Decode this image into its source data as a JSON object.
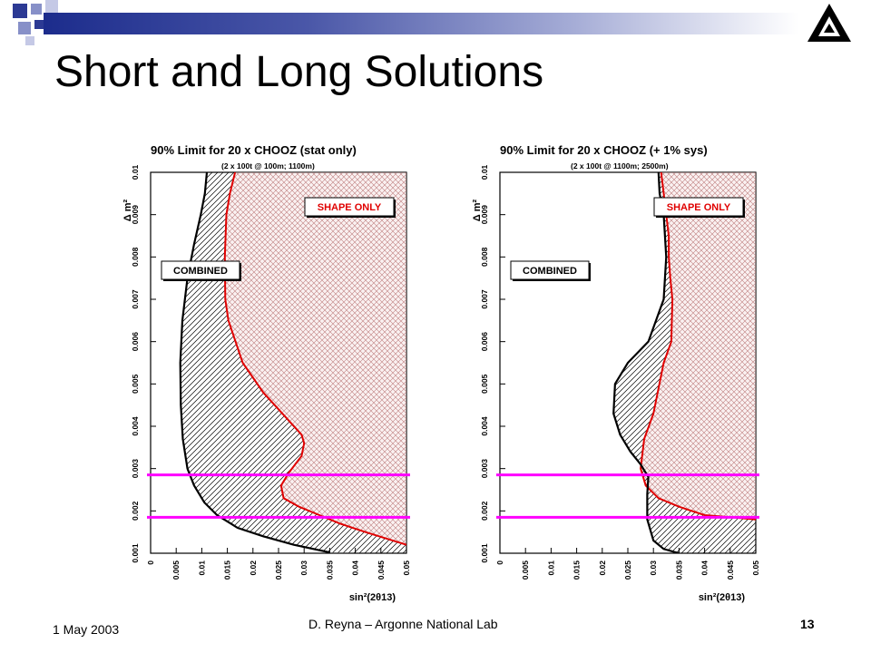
{
  "slide": {
    "title": "Short and Long Solutions",
    "date": "1 May 2003",
    "footer_center": "D. Reyna – Argonne National Lab",
    "page_number": "13",
    "logo": "argonne-triangle-logo",
    "colors": {
      "band_dark": "#1c2c8c",
      "band_light": "#a5acd6",
      "shape_only": "#e00000",
      "combined": "#000000",
      "reference_lines": "#ff00ff"
    }
  },
  "chart_data": [
    {
      "type": "line",
      "title": "90% Limit for 20 x CHOOZ (stat only)",
      "subtitle": "(2 x 100t @ 100m; 1100m)",
      "xlabel": "sin²(2θ13)",
      "ylabel": "Δ m²",
      "xlim": [
        0,
        0.05
      ],
      "ylim": [
        0.001,
        0.01
      ],
      "x_ticks": [
        "0",
        "0.005",
        "0.01",
        "0.015",
        "0.02",
        "0.025",
        "0.03",
        "0.035",
        "0.04",
        "0.045",
        "0.05"
      ],
      "y_ticks": [
        "0.001",
        "0.002",
        "0.003",
        "0.004",
        "0.005",
        "0.006",
        "0.007",
        "0.008",
        "0.009",
        "0.01"
      ],
      "labels": {
        "shape": "SHAPE ONLY",
        "combined": "COMBINED"
      },
      "series": [
        {
          "name": "SHAPE ONLY",
          "color": "#e00000",
          "x": [
            0.0165,
            0.0155,
            0.0148,
            0.0145,
            0.0146,
            0.0152,
            0.018,
            0.022,
            0.0265,
            0.0295,
            0.03,
            0.0295,
            0.027,
            0.0255,
            0.026,
            0.029,
            0.033,
            0.037,
            0.042,
            0.046,
            0.05
          ],
          "y": [
            0.01,
            0.0095,
            0.009,
            0.008,
            0.007,
            0.0065,
            0.0055,
            0.0048,
            0.0042,
            0.0038,
            0.0036,
            0.0033,
            0.0029,
            0.0026,
            0.0023,
            0.0021,
            0.0019,
            0.0017,
            0.0015,
            0.00135,
            0.0012
          ]
        },
        {
          "name": "COMBINED",
          "color": "#000000",
          "x": [
            0.011,
            0.0106,
            0.0098,
            0.0085,
            0.0072,
            0.0062,
            0.0058,
            0.0059,
            0.0063,
            0.0072,
            0.0085,
            0.0105,
            0.013,
            0.017,
            0.022,
            0.028,
            0.035
          ],
          "y": [
            0.01,
            0.0095,
            0.009,
            0.0083,
            0.0075,
            0.0065,
            0.0055,
            0.0045,
            0.0037,
            0.003,
            0.0026,
            0.0022,
            0.0019,
            0.0016,
            0.0014,
            0.0012,
            0.00102
          ]
        }
      ],
      "reference_lines_y": [
        0.00285,
        0.00185
      ]
    },
    {
      "type": "line",
      "title": "90% Limit for 20 x CHOOZ (+ 1% sys)",
      "subtitle": "(2 x 100t @ 1100m; 2500m)",
      "xlabel": "sin²(2θ13)",
      "ylabel": "Δ m²",
      "xlim": [
        0,
        0.05
      ],
      "ylim": [
        0.001,
        0.01
      ],
      "x_ticks": [
        "0",
        "0.005",
        "0.01",
        "0.015",
        "0.02",
        "0.025",
        "0.03",
        "0.035",
        "0.04",
        "0.045",
        "0.05"
      ],
      "y_ticks": [
        "0.001",
        "0.002",
        "0.003",
        "0.004",
        "0.005",
        "0.006",
        "0.007",
        "0.008",
        "0.009",
        "0.01"
      ],
      "labels": {
        "shape": "SHAPE ONLY",
        "combined": "COMBINED"
      },
      "series": [
        {
          "name": "SHAPE ONLY",
          "color": "#e00000",
          "x": [
            0.0315,
            0.032,
            0.0325,
            0.033,
            0.033,
            0.0333,
            0.0337,
            0.0335,
            0.032,
            0.03,
            0.0282,
            0.0275,
            0.0285,
            0.031,
            0.035,
            0.04,
            0.045,
            0.05
          ],
          "y": [
            0.01,
            0.0095,
            0.009,
            0.0085,
            0.008,
            0.0075,
            0.007,
            0.006,
            0.0055,
            0.0043,
            0.0037,
            0.003,
            0.0026,
            0.0023,
            0.0021,
            0.0019,
            0.00185,
            0.0018
          ]
        },
        {
          "name": "COMBINED",
          "color": "#000000",
          "x": [
            0.031,
            0.0312,
            0.032,
            0.0325,
            0.032,
            0.029,
            0.025,
            0.0225,
            0.0222,
            0.0235,
            0.0255,
            0.0275,
            0.029,
            0.0288,
            0.0288,
            0.03,
            0.032,
            0.035
          ],
          "y": [
            0.01,
            0.0095,
            0.009,
            0.008,
            0.007,
            0.006,
            0.0055,
            0.005,
            0.0043,
            0.0038,
            0.0034,
            0.0031,
            0.0028,
            0.0024,
            0.0018,
            0.0013,
            0.0011,
            0.001
          ]
        }
      ],
      "reference_lines_y": [
        0.00285,
        0.00185
      ]
    }
  ]
}
